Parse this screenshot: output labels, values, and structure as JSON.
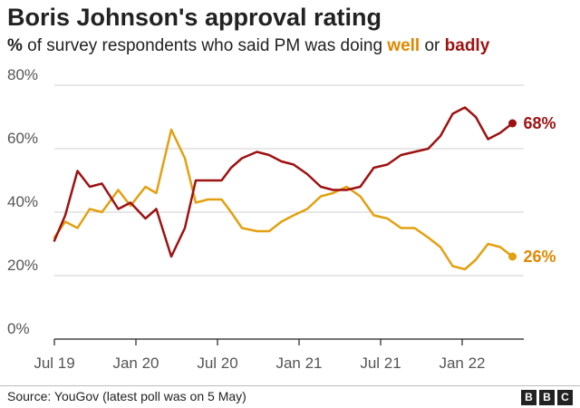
{
  "header": {
    "title": "Boris Johnson's approval rating",
    "subtitle_prefix": "%",
    "subtitle_middle": " of survey respondents who said PM was doing ",
    "subtitle_well": "well",
    "subtitle_or": " or ",
    "subtitle_badly": "badly"
  },
  "colors": {
    "well": "#e3a00f",
    "badly": "#9d1212",
    "well_label": "#e08800",
    "badly_label": "#9d1212",
    "grid": "#cfcfcf",
    "axis": "#222222",
    "text": "#222222",
    "tick_text": "#555555"
  },
  "chart_data": {
    "type": "line",
    "title": "Boris Johnson's approval rating",
    "subtitle": "% of survey respondents who said PM was doing well or badly",
    "xlabel": "",
    "ylabel": "",
    "ylim": [
      0,
      80
    ],
    "xlim": [
      0,
      34
    ],
    "grid": true,
    "y_ticks": [
      {
        "value": 0,
        "label": "0%"
      },
      {
        "value": 20,
        "label": "20%"
      },
      {
        "value": 40,
        "label": "40%"
      },
      {
        "value": 60,
        "label": "60%"
      },
      {
        "value": 80,
        "label": "80%"
      }
    ],
    "x_ticks": [
      {
        "month": 0,
        "label": "Jul 19"
      },
      {
        "month": 6,
        "label": "Jan 20"
      },
      {
        "month": 12,
        "label": "Jul 20"
      },
      {
        "month": 18,
        "label": "Jan 21"
      },
      {
        "month": 24,
        "label": "Jul 21"
      },
      {
        "month": 30,
        "label": "Jan 22"
      }
    ],
    "x_unit": "months since Jul 2019",
    "series": [
      {
        "name": "badly",
        "end_label": "68%",
        "points": [
          [
            0,
            31
          ],
          [
            0.8,
            39
          ],
          [
            1.7,
            53
          ],
          [
            2.6,
            48
          ],
          [
            3.5,
            49
          ],
          [
            4.7,
            41
          ],
          [
            5.6,
            43
          ],
          [
            6.7,
            38
          ],
          [
            7.5,
            41
          ],
          [
            8.6,
            26
          ],
          [
            9.6,
            35
          ],
          [
            10.4,
            50
          ],
          [
            11.3,
            50
          ],
          [
            12.3,
            50
          ],
          [
            13,
            54
          ],
          [
            13.8,
            57
          ],
          [
            14.9,
            59
          ],
          [
            15.8,
            58
          ],
          [
            16.7,
            56
          ],
          [
            17.6,
            55
          ],
          [
            18.6,
            52
          ],
          [
            19.6,
            48
          ],
          [
            20.5,
            47
          ],
          [
            21.5,
            47
          ],
          [
            22.5,
            48
          ],
          [
            23.5,
            54
          ],
          [
            24.5,
            55
          ],
          [
            25.5,
            58
          ],
          [
            26.5,
            59
          ],
          [
            27.5,
            60
          ],
          [
            28.4,
            64
          ],
          [
            29.3,
            71
          ],
          [
            30.2,
            73
          ],
          [
            31,
            70
          ],
          [
            31.9,
            63
          ],
          [
            32.8,
            65
          ],
          [
            33.7,
            68
          ]
        ]
      },
      {
        "name": "well",
        "end_label": "26%",
        "points": [
          [
            0,
            32
          ],
          [
            0.8,
            37
          ],
          [
            1.7,
            35
          ],
          [
            2.6,
            41
          ],
          [
            3.5,
            40
          ],
          [
            4.7,
            47
          ],
          [
            5.6,
            42
          ],
          [
            6.7,
            48
          ],
          [
            7.5,
            46
          ],
          [
            8.6,
            66
          ],
          [
            9.6,
            57
          ],
          [
            10.4,
            43
          ],
          [
            11.3,
            44
          ],
          [
            12.3,
            44
          ],
          [
            13,
            40
          ],
          [
            13.8,
            35
          ],
          [
            14.9,
            34
          ],
          [
            15.8,
            34
          ],
          [
            16.7,
            37
          ],
          [
            17.6,
            39
          ],
          [
            18.6,
            41
          ],
          [
            19.6,
            45
          ],
          [
            20.5,
            46
          ],
          [
            21.5,
            48
          ],
          [
            22.5,
            45
          ],
          [
            23.5,
            39
          ],
          [
            24.5,
            38
          ],
          [
            25.5,
            35
          ],
          [
            26.5,
            35
          ],
          [
            27.5,
            32
          ],
          [
            28.4,
            29
          ],
          [
            29.3,
            23
          ],
          [
            30.2,
            22
          ],
          [
            31,
            25
          ],
          [
            31.9,
            30
          ],
          [
            32.8,
            29
          ],
          [
            33.7,
            26
          ]
        ]
      }
    ]
  },
  "footer": {
    "source": "Source: YouGov (latest poll was on 5 May)",
    "logo_letters": [
      "B",
      "B",
      "C"
    ]
  }
}
